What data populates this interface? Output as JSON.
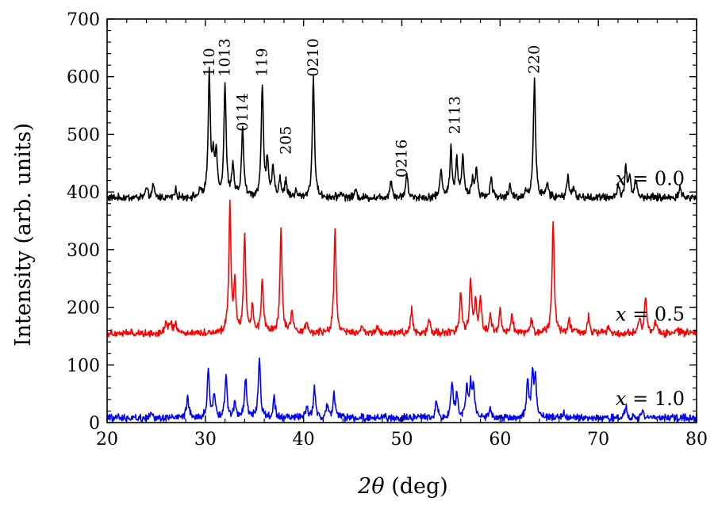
{
  "chart_data": {
    "type": "line",
    "title": "",
    "xlabel_symbol": "2θ",
    "xlabel_unit": "(deg)",
    "ylabel": "Intensity (arb. units)",
    "xlim": [
      20,
      80
    ],
    "ylim": [
      0,
      700
    ],
    "x_ticks": [
      20,
      30,
      40,
      50,
      60,
      70,
      80
    ],
    "y_ticks": [
      0,
      100,
      200,
      300,
      400,
      500,
      600,
      700
    ],
    "grid": false,
    "series": [
      {
        "name": "x = 0.0",
        "label_var": "x",
        "label_eq": " = 0.0",
        "color": "#000000",
        "baseline": 390,
        "peaks": [
          [
            24.0,
            15
          ],
          [
            24.7,
            20
          ],
          [
            27.0,
            12
          ],
          [
            29.5,
            10
          ],
          [
            30.4,
            208
          ],
          [
            30.8,
            60
          ],
          [
            31.1,
            75
          ],
          [
            32.0,
            195
          ],
          [
            32.8,
            55
          ],
          [
            33.8,
            120
          ],
          [
            35.8,
            192
          ],
          [
            36.3,
            60
          ],
          [
            36.9,
            50
          ],
          [
            37.6,
            32
          ],
          [
            38.2,
            28
          ],
          [
            39.2,
            10
          ],
          [
            41.0,
            206
          ],
          [
            43.8,
            10
          ],
          [
            45.3,
            12
          ],
          [
            48.9,
            30
          ],
          [
            50.5,
            40
          ],
          [
            54.0,
            50
          ],
          [
            55.0,
            85
          ],
          [
            55.6,
            62
          ],
          [
            56.2,
            72
          ],
          [
            57.2,
            30
          ],
          [
            57.6,
            50
          ],
          [
            59.1,
            35
          ],
          [
            61.0,
            20
          ],
          [
            62.6,
            10
          ],
          [
            63.5,
            210
          ],
          [
            64.8,
            25
          ],
          [
            66.9,
            38
          ],
          [
            67.5,
            15
          ],
          [
            72.0,
            20
          ],
          [
            72.8,
            52
          ],
          [
            73.2,
            35
          ],
          [
            73.8,
            30
          ],
          [
            78.3,
            18
          ]
        ],
        "peak_labels": [
          {
            "text": "110",
            "x": 30.4,
            "y": 600
          },
          {
            "text": "1013",
            "x": 32.0,
            "y": 600
          },
          {
            "text": "0114",
            "x": 33.8,
            "y": 505
          },
          {
            "text": "119",
            "x": 35.8,
            "y": 600
          },
          {
            "text": "205",
            "x": 38.2,
            "y": 465
          },
          {
            "text": "0210",
            "x": 41.0,
            "y": 600
          },
          {
            "text": "0216",
            "x": 50.0,
            "y": 425
          },
          {
            "text": "2113",
            "x": 55.4,
            "y": 500
          },
          {
            "text": "220",
            "x": 63.5,
            "y": 605
          }
        ]
      },
      {
        "name": "x = 0.5",
        "label_var": "x",
        "label_eq": " = 0.5",
        "color": "#ff0000",
        "baseline": 155,
        "peaks": [
          [
            26.0,
            22
          ],
          [
            26.5,
            20
          ],
          [
            27.0,
            18
          ],
          [
            32.5,
            220
          ],
          [
            33.0,
            80
          ],
          [
            34.0,
            170
          ],
          [
            34.8,
            45
          ],
          [
            35.8,
            95
          ],
          [
            37.7,
            178
          ],
          [
            38.8,
            35
          ],
          [
            40.3,
            20
          ],
          [
            43.2,
            178
          ],
          [
            46.0,
            10
          ],
          [
            47.5,
            12
          ],
          [
            51.0,
            40
          ],
          [
            52.8,
            25
          ],
          [
            56.0,
            70
          ],
          [
            57.0,
            90
          ],
          [
            57.5,
            55
          ],
          [
            58.0,
            60
          ],
          [
            59.0,
            30
          ],
          [
            60.0,
            40
          ],
          [
            61.2,
            35
          ],
          [
            63.2,
            25
          ],
          [
            65.4,
            195
          ],
          [
            67.0,
            25
          ],
          [
            69.0,
            30
          ],
          [
            71.0,
            12
          ],
          [
            74.2,
            25
          ],
          [
            74.8,
            62
          ],
          [
            75.8,
            22
          ],
          [
            78.0,
            8
          ]
        ]
      },
      {
        "name": "x = 1.0",
        "label_var": "x",
        "label_eq": " = 1.0",
        "color": "#0000ff",
        "baseline": 8,
        "peaks": [
          [
            24.5,
            10
          ],
          [
            28.2,
            35
          ],
          [
            30.3,
            82
          ],
          [
            30.9,
            40
          ],
          [
            32.1,
            72
          ],
          [
            33.0,
            25
          ],
          [
            34.1,
            70
          ],
          [
            35.5,
            105
          ],
          [
            37.0,
            35
          ],
          [
            40.3,
            20
          ],
          [
            41.1,
            50
          ],
          [
            42.4,
            20
          ],
          [
            43.1,
            40
          ],
          [
            53.5,
            30
          ],
          [
            55.1,
            62
          ],
          [
            55.6,
            40
          ],
          [
            56.6,
            50
          ],
          [
            57.0,
            55
          ],
          [
            57.3,
            52
          ],
          [
            59.0,
            15
          ],
          [
            62.8,
            65
          ],
          [
            63.3,
            75
          ],
          [
            63.6,
            60
          ],
          [
            66.5,
            10
          ],
          [
            72.8,
            20
          ],
          [
            74.5,
            12
          ]
        ]
      }
    ]
  }
}
